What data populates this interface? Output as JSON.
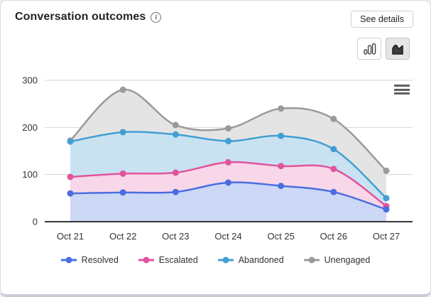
{
  "header": {
    "title": "Conversation outcomes",
    "see_details_label": "See details"
  },
  "toolbar": {
    "column_toggle_name": "column-chart-view",
    "area_toggle_name": "area-chart-view",
    "area_toggle_selected": true
  },
  "chart_data": {
    "type": "area",
    "categories": [
      "Oct 21",
      "Oct 22",
      "Oct 23",
      "Oct 24",
      "Oct 25",
      "Oct 26",
      "Oct 27"
    ],
    "series": [
      {
        "name": "Unengaged",
        "values": [
          172,
          280,
          205,
          198,
          240,
          218,
          108
        ],
        "line_color": "#9a9a9a",
        "fill_color": "#e4e4e4"
      },
      {
        "name": "Abandoned",
        "values": [
          170,
          190,
          185,
          171,
          182,
          154,
          50
        ],
        "line_color": "#419fd1",
        "fill_color": "#c9e2f2"
      },
      {
        "name": "Escalated",
        "values": [
          95,
          102,
          104,
          126,
          118,
          112,
          33
        ],
        "line_color": "#e0549b",
        "fill_color": "#f8d7e8"
      },
      {
        "name": "Resolved",
        "values": [
          60,
          62,
          63,
          83,
          76,
          63,
          26
        ],
        "line_color": "#4a6ee0",
        "fill_color": "#cdd8f7"
      }
    ],
    "legend_order": [
      "Resolved",
      "Escalated",
      "Abandoned",
      "Unengaged"
    ],
    "yticks": [
      0,
      100,
      200,
      300
    ],
    "ylim": [
      0,
      300
    ],
    "grid": true,
    "legend_position": "bottom",
    "axis_text_color": "#333333",
    "gridline_color": "#e6e6e6",
    "axis_line_color": "#37383a"
  }
}
